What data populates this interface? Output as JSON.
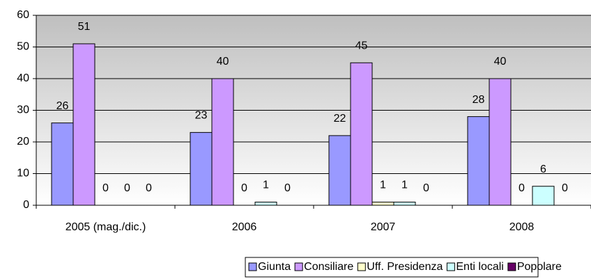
{
  "chart_data": {
    "type": "bar",
    "categories": [
      "2005 (mag./dic.)",
      "2006",
      "2007",
      "2008"
    ],
    "series": [
      {
        "name": "Giunta",
        "color": "#9999ff",
        "values": [
          26,
          23,
          22,
          28
        ]
      },
      {
        "name": "Consiliare",
        "color": "#cc99ff",
        "values": [
          51,
          40,
          45,
          40
        ]
      },
      {
        "name": "Uff. Presidenza",
        "color": "#ffffcc",
        "values": [
          0,
          0,
          1,
          0
        ]
      },
      {
        "name": "Enti locali",
        "color": "#ccffff",
        "values": [
          0,
          1,
          1,
          6
        ]
      },
      {
        "name": "Popolare",
        "color": "#660066",
        "values": [
          0,
          0,
          0,
          0
        ]
      }
    ],
    "ylim": [
      0,
      60
    ],
    "yticks": [
      0,
      10,
      20,
      30,
      40,
      50,
      60
    ],
    "grid": true,
    "legend": "bottom"
  }
}
